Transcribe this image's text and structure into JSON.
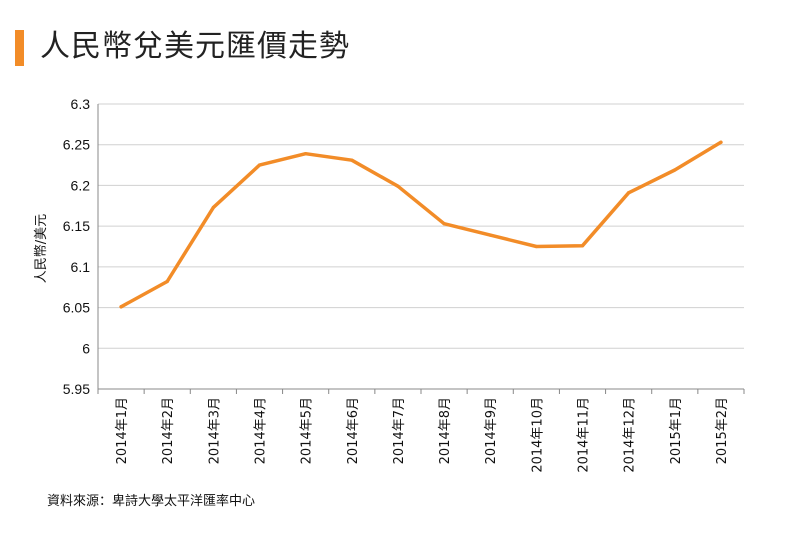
{
  "title": "人民幣兌美元匯價走勢",
  "source": "資料來源：卑詩大學太平洋匯率中心",
  "colors": {
    "accent": "#f28c28",
    "line": "#f28c28",
    "grid": "#d0d0d0",
    "axis": "#888888"
  },
  "chart_data": {
    "type": "line",
    "ylabel": "人民幣/美元",
    "xlabel": "",
    "ylim": [
      5.95,
      6.3
    ],
    "yticks": [
      5.95,
      6,
      6.05,
      6.1,
      6.15,
      6.2,
      6.25,
      6.3
    ],
    "ytick_labels": [
      "5.95",
      "6",
      "6.05",
      "6.1",
      "6.15",
      "6.2",
      "6.25",
      "6.3"
    ],
    "grid": true,
    "categories": [
      "2014年1月",
      "2014年2月",
      "2014年3月",
      "2014年4月",
      "2014年5月",
      "2014年6月",
      "2014年7月",
      "2014年8月",
      "2014年9月",
      "2014年10月",
      "2014年11月",
      "2014年12月",
      "2015年1月",
      "2015年2月"
    ],
    "series": [
      {
        "values": [
          6.051,
          6.082,
          6.173,
          6.225,
          6.239,
          6.231,
          6.199,
          6.153,
          6.139,
          6.125,
          6.126,
          6.191,
          6.219,
          6.253
        ]
      }
    ]
  }
}
